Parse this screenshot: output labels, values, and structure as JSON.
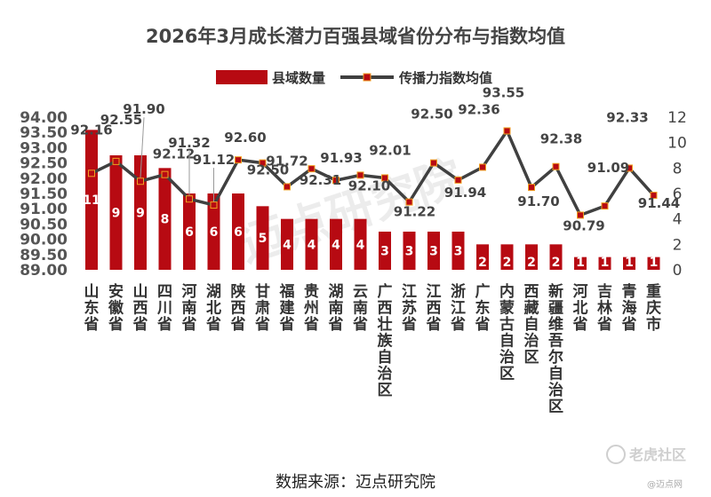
{
  "chart_data": {
    "type": "bar+line",
    "title": "2026年3月成长潜力百强县域省份分布与指数均值",
    "categories": [
      "山东省",
      "安徽省",
      "山西省",
      "四川省",
      "河南省",
      "湖北省",
      "陕西省",
      "甘肃省",
      "福建省",
      "贵州省",
      "湖南省",
      "云南省",
      "广西壮族自治区",
      "江苏省",
      "江西省",
      "浙江省",
      "广东省",
      "内蒙古自治区",
      "西藏自治区",
      "新疆维吾尔自治区",
      "河北省",
      "吉林省",
      "青海省",
      "重庆市"
    ],
    "series": [
      {
        "name": "县域数量",
        "type": "bar",
        "axis": "right",
        "values": [
          11,
          9,
          9,
          8,
          6,
          6,
          6,
          5,
          4,
          4,
          4,
          4,
          3,
          3,
          3,
          3,
          2,
          2,
          2,
          2,
          1,
          1,
          1,
          1
        ]
      },
      {
        "name": "传播力指数均值",
        "type": "line",
        "axis": "left",
        "values": [
          92.16,
          92.55,
          91.9,
          92.12,
          91.32,
          91.12,
          92.6,
          92.5,
          91.72,
          92.31,
          91.93,
          92.1,
          92.01,
          91.22,
          92.5,
          91.94,
          92.36,
          93.55,
          91.7,
          92.38,
          90.79,
          91.09,
          92.33,
          91.44
        ]
      }
    ],
    "left_axis": {
      "min": 89.0,
      "max": 94.0,
      "ticks": [
        "89.00",
        "89.50",
        "90.00",
        "90.50",
        "91.00",
        "91.50",
        "92.00",
        "92.50",
        "93.00",
        "93.50",
        "94.00"
      ]
    },
    "right_axis": {
      "min": 0,
      "max": 12,
      "ticks": [
        "0",
        "2",
        "4",
        "6",
        "8",
        "10",
        "12"
      ]
    },
    "legend": [
      "县域数量",
      "传播力指数均值"
    ],
    "legend_position": "top-center",
    "colors": {
      "bar": "#b70a12",
      "line": "#404040",
      "marker": "#b70a12"
    }
  },
  "source_text": "数据来源：迈点研究院",
  "watermark_text": "迈点研究院",
  "corner_logo": "老虎社区",
  "corner_small": "@迈点网"
}
